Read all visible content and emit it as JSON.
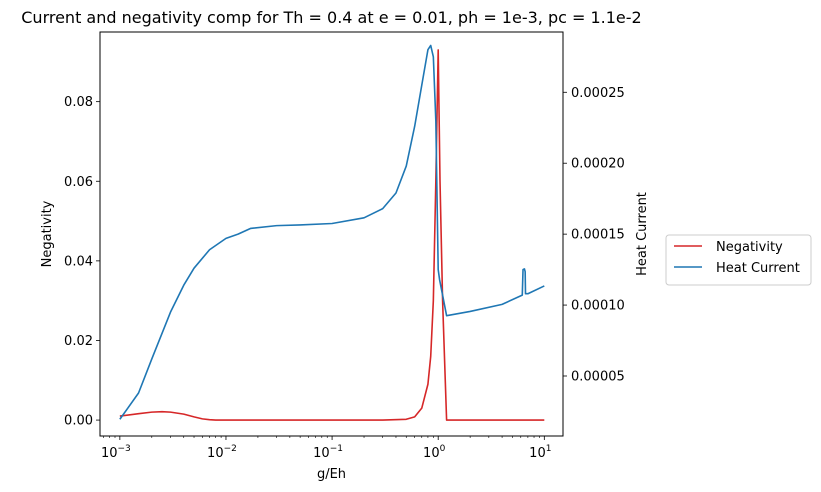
{
  "chart_data": {
    "type": "line",
    "title": "Current and negativity comp for Th = 0.4 at e = 0.01, ph = 1e-3, pc = 1.1e-2",
    "xlabel": "g/Eh",
    "ylabel_left": "Negativity",
    "ylabel_right": "Heat Current",
    "x_scale": "log",
    "xlim": [
      0.00065,
      15
    ],
    "ylim_left": [
      -0.004,
      0.0975
    ],
    "ylim_right": [
      7.7e-06,
      0.0002925
    ],
    "x_ticks": [
      {
        "value": 0.001,
        "base": "10",
        "exp": "−3"
      },
      {
        "value": 0.01,
        "base": "10",
        "exp": "−2"
      },
      {
        "value": 0.1,
        "base": "10",
        "exp": "−1"
      },
      {
        "value": 1,
        "base": "10",
        "exp": "0"
      },
      {
        "value": 10,
        "base": "10",
        "exp": "1"
      }
    ],
    "y_ticks_left": [
      {
        "value": 0.0,
        "label": "0.00"
      },
      {
        "value": 0.02,
        "label": "0.02"
      },
      {
        "value": 0.04,
        "label": "0.04"
      },
      {
        "value": 0.06,
        "label": "0.06"
      },
      {
        "value": 0.08,
        "label": "0.08"
      }
    ],
    "y_ticks_right": [
      {
        "value": 5e-05,
        "label": "0.00005"
      },
      {
        "value": 0.0001,
        "label": "0.00010"
      },
      {
        "value": 0.00015,
        "label": "0.00015"
      },
      {
        "value": 0.0002,
        "label": "0.00020"
      },
      {
        "value": 0.00025,
        "label": "0.00025"
      }
    ],
    "legend_position": "outside-right",
    "grid": false,
    "series": [
      {
        "name": "Negativity",
        "axis": "left",
        "color": "#d62728",
        "x": [
          0.001,
          0.0015,
          0.002,
          0.0025,
          0.003,
          0.004,
          0.005,
          0.006,
          0.007,
          0.008,
          0.01,
          0.1,
          0.3,
          0.5,
          0.6,
          0.7,
          0.8,
          0.85,
          0.9,
          0.95,
          1.0,
          1.04,
          1.1,
          1.2,
          10
        ],
        "y": [
          0.001,
          0.0016,
          0.002,
          0.0021,
          0.002,
          0.0015,
          0.0008,
          0.0003,
          0.0001,
          0.0,
          0.0,
          0.0,
          0.0,
          0.0002,
          0.0008,
          0.003,
          0.009,
          0.016,
          0.03,
          0.06,
          0.093,
          0.06,
          0.03,
          0.0,
          0.0
        ]
      },
      {
        "name": "Heat Current",
        "axis": "right",
        "color": "#1f77b4",
        "x": [
          0.001,
          0.0015,
          0.002,
          0.003,
          0.004,
          0.005,
          0.007,
          0.01,
          0.013,
          0.017,
          0.03,
          0.05,
          0.1,
          0.2,
          0.3,
          0.4,
          0.5,
          0.6,
          0.7,
          0.8,
          0.85,
          0.9,
          0.95,
          1.0,
          1.03,
          1.2,
          2,
          4,
          6.2,
          6.3,
          6.5,
          6.6,
          6.65,
          7,
          10
        ],
        "y": [
          1.95e-05,
          3.8e-05,
          6.2e-05,
          9.5e-05,
          0.000114,
          0.000126,
          0.000139,
          0.000147,
          0.00015,
          0.000154,
          0.000156,
          0.0001565,
          0.0001575,
          0.0001615,
          0.000168,
          0.000179,
          0.000198,
          0.000226,
          0.000255,
          0.00028,
          0.000283,
          0.000275,
          0.00023,
          0.000125,
          0.000118,
          9.25e-05,
          9.55e-05,
          0.0001005,
          0.000107,
          0.000125,
          0.0001255,
          0.0001235,
          0.000108,
          0.000108,
          0.0001135
        ]
      }
    ]
  }
}
